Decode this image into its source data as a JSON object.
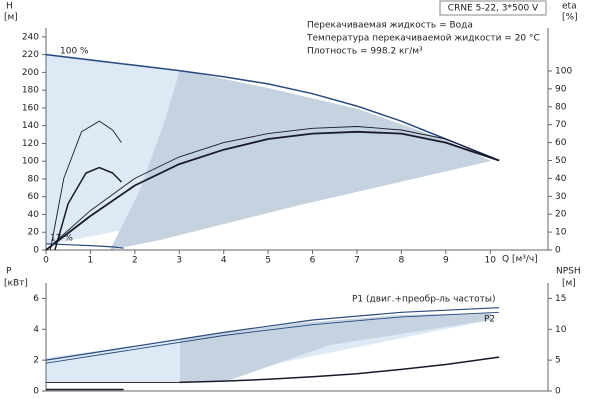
{
  "chart_data": [
    {
      "type": "line",
      "title": "CRNE 5-22, 3*500 V",
      "annotations": [
        "Перекачиваемая жидкость = Вода",
        "Температура перекачиваемой жидкости = 20 °C",
        "Плотность = 998.2 кг/м³"
      ],
      "y_label": "H",
      "y_unit": "[м]",
      "y2_label": "eta",
      "y2_unit": "[%]",
      "x_label": "Q [м³/ч]",
      "curve_labels": [
        "100 %",
        "17 %"
      ],
      "xlim": [
        0,
        11.3
      ],
      "xticks": [
        0,
        1,
        2,
        3,
        4,
        5,
        6,
        7,
        8,
        9,
        10
      ],
      "ylim": [
        0,
        250
      ],
      "yticks": [
        0,
        20,
        40,
        60,
        80,
        100,
        120,
        140,
        160,
        180,
        200,
        220,
        240
      ],
      "y2lim": [
        0,
        124
      ],
      "y2ticks": [
        0,
        10,
        20,
        30,
        40,
        50,
        60,
        70,
        80,
        90,
        100
      ],
      "series": [
        {
          "color": "#2a4a80",
          "width": 1.5,
          "x": [
            0,
            1,
            2,
            3,
            4,
            5,
            6,
            7,
            8,
            9,
            10.2
          ],
          "values": [
            220,
            214,
            208,
            202,
            195,
            187,
            176,
            162,
            145,
            125,
            101
          ]
        },
        {
          "color": "#1a1a2a",
          "width": 0.9,
          "axis": "y2",
          "x": [
            0,
            1,
            2,
            3,
            4,
            5,
            6,
            7,
            8,
            9,
            10.2
          ],
          "values": [
            0,
            22,
            40,
            52,
            60,
            65,
            68,
            69,
            67,
            62,
            50
          ]
        },
        {
          "color": "#1a1a2a",
          "width": 1.8,
          "axis": "y2",
          "x": [
            0,
            1,
            2,
            3,
            4,
            5,
            6,
            7,
            8,
            9,
            10.2
          ],
          "values": [
            0,
            19,
            36,
            48,
            56,
            62,
            65,
            66,
            65,
            60,
            50
          ]
        },
        {
          "color": "#2a4a80",
          "width": 1.2,
          "x": [
            0,
            0.5,
            1,
            1.5,
            1.75
          ],
          "values": [
            7,
            6,
            5,
            3.5,
            2
          ]
        },
        {
          "color": "#1a1a2a",
          "width": 0.9,
          "axis": "y2",
          "x": [
            0.1,
            0.4,
            0.8,
            1.2,
            1.5,
            1.7
          ],
          "values": [
            0,
            40,
            66,
            72,
            67,
            60
          ]
        },
        {
          "color": "#1a1a2a",
          "width": 1.5,
          "axis": "y2",
          "x": [
            0.2,
            0.5,
            0.9,
            1.2,
            1.5,
            1.7
          ],
          "values": [
            0,
            26,
            43,
            46,
            43,
            38
          ]
        }
      ]
    },
    {
      "type": "line",
      "y_label": "P",
      "y_unit": "[кВт]",
      "y2_label": "NPSH",
      "y2_unit": "[м]",
      "curve_labels": [
        "P1 (двиг.+преобр-ль частоты)",
        "P2"
      ],
      "xlim": [
        0,
        11.3
      ],
      "ylim": [
        0,
        7
      ],
      "yticks": [
        0,
        2,
        4,
        6
      ],
      "y2lim": [
        0,
        17.5
      ],
      "y2ticks": [
        0,
        5,
        10,
        15
      ],
      "series": [
        {
          "color": "#2a4a80",
          "width": 1.2,
          "x": [
            0,
            2,
            4,
            6,
            8,
            10.2
          ],
          "values": [
            2.0,
            2.9,
            3.8,
            4.6,
            5.1,
            5.4
          ]
        },
        {
          "color": "#2a4a80",
          "width": 0.9,
          "x": [
            0,
            2,
            4,
            6,
            8,
            10.2
          ],
          "values": [
            1.8,
            2.7,
            3.6,
            4.3,
            4.8,
            5.1
          ]
        },
        {
          "color": "#1a1a2a",
          "width": 0.9,
          "axis": "y2",
          "x": [
            0,
            3
          ],
          "values": [
            1.4,
            1.4
          ]
        },
        {
          "color": "#1a1a2a",
          "width": 1.5,
          "axis": "y2",
          "x": [
            3,
            4,
            5,
            6,
            7,
            8,
            9,
            10.2
          ],
          "values": [
            1.4,
            1.6,
            1.9,
            2.3,
            2.8,
            3.5,
            4.3,
            5.5
          ]
        },
        {
          "color": "#1a1a2a",
          "width": 1.5,
          "x": [
            0,
            0.8,
            1.75
          ],
          "values": [
            0.1,
            0.1,
            0.1
          ]
        }
      ]
    }
  ]
}
